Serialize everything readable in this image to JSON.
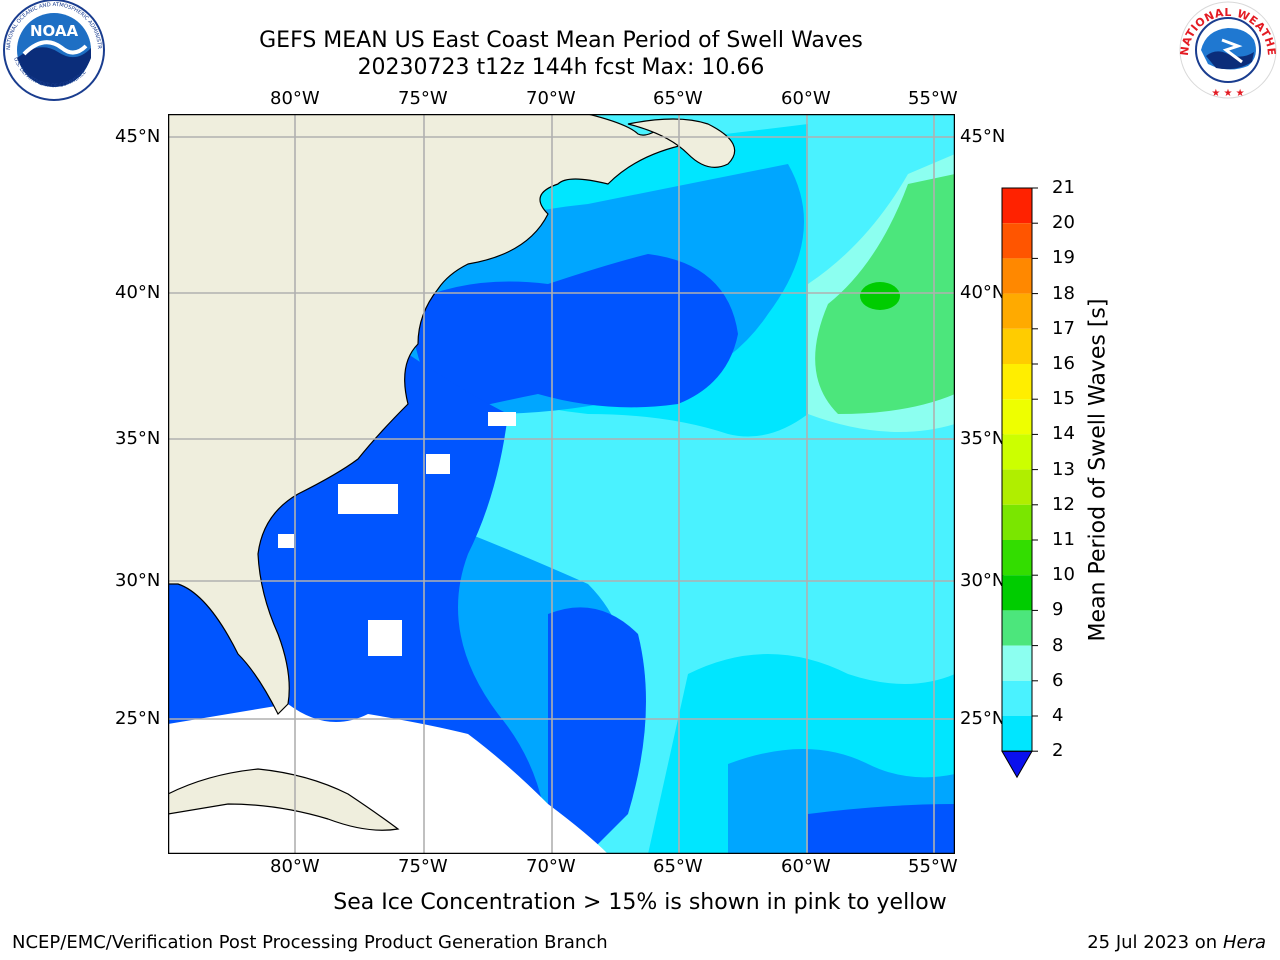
{
  "header": {
    "title_line1": "GEFS MEAN US East Coast Mean Period of Swell Waves",
    "title_line2": "20230723 t12z 144h fcst   Max: 10.66"
  },
  "logos": {
    "left": {
      "text": "NOAA",
      "ring_top": "NATIONAL OCEANIC AND ATMOSPHERIC ADMINISTRATION",
      "ring_bottom": "U.S. DEPARTMENT OF COMMERCE"
    },
    "right": {
      "ring": "NATIONAL WEATHER SERVICE"
    }
  },
  "map": {
    "lon_labels": [
      "80°W",
      "75°W",
      "70°W",
      "65°W",
      "60°W",
      "55°W"
    ],
    "lat_labels": [
      "45°N",
      "40°N",
      "35°N",
      "30°N",
      "25°N"
    ],
    "colors": {
      "land": "#efeedd",
      "grid": "#b0b0b0",
      "no_data": "#ffffff"
    }
  },
  "colorbar": {
    "label": "Mean Period of Swell Waves [s]",
    "ticks": [
      "2",
      "4",
      "6",
      "8",
      "9",
      "10",
      "11",
      "12",
      "13",
      "14",
      "15",
      "16",
      "17",
      "18",
      "19",
      "20",
      "21"
    ],
    "colors": [
      "#0055ff",
      "#00a6ff",
      "#00e6ff",
      "#4af2ff",
      "#8cfff0",
      "#4ce67c",
      "#00cc00",
      "#33dd00",
      "#7ae600",
      "#b0ee00",
      "#ccff00",
      "#eeff00",
      "#ffee00",
      "#ffcc00",
      "#ffaa00",
      "#ff8800",
      "#ff5500",
      "#ff2200"
    ],
    "extend_color": "#0a10ee"
  },
  "footer": {
    "note": "Sea Ice Concentration > 15% is shown in pink to yellow",
    "left": "NCEP/EMC/Verification Post Processing Product Generation Branch",
    "right_date": "25 Jul 2023 on ",
    "right_host": "Hera"
  }
}
